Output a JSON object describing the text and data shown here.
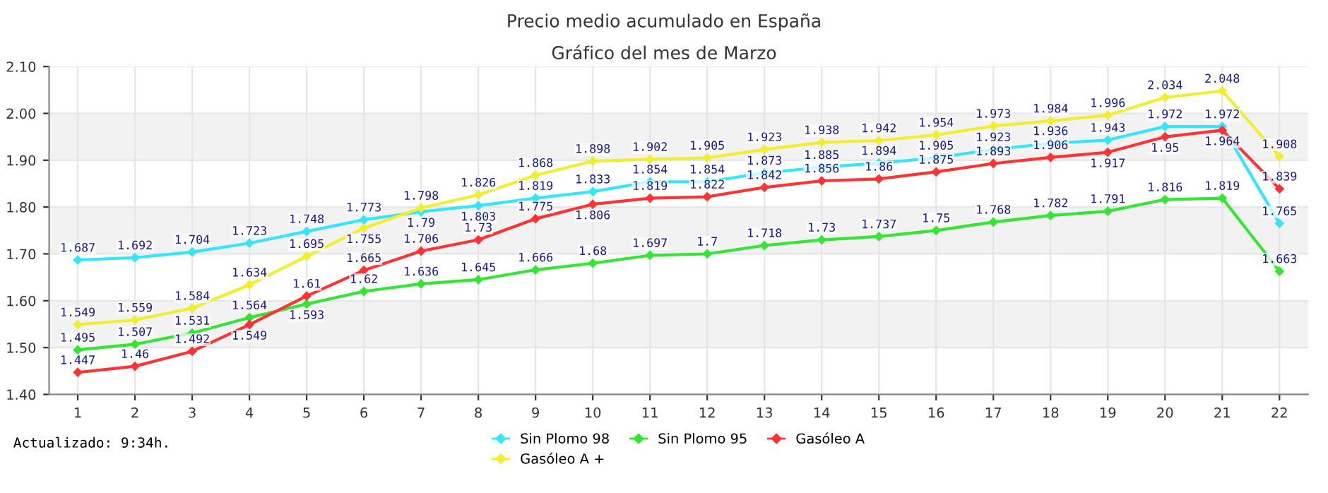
{
  "chart_data": {
    "type": "line",
    "title": "Precio medio acumulado en España",
    "subtitle": "Gráfico del mes de Marzo",
    "categories": [
      "1",
      "2",
      "3",
      "4",
      "5",
      "6",
      "7",
      "8",
      "9",
      "10",
      "11",
      "12",
      "13",
      "14",
      "15",
      "16",
      "17",
      "18",
      "19",
      "20",
      "21",
      "22"
    ],
    "series": [
      {
        "name": "Sin Plomo 98",
        "color": "#33e6ff",
        "values": [
          1.687,
          1.692,
          1.704,
          1.723,
          1.748,
          1.773,
          1.79,
          1.803,
          1.819,
          1.833,
          1.854,
          1.854,
          1.873,
          1.885,
          1.894,
          1.905,
          1.923,
          1.936,
          1.943,
          1.972,
          1.972,
          1.765
        ]
      },
      {
        "name": "Gasóleo A +",
        "color": "#f2ee2e",
        "values": [
          1.549,
          1.559,
          1.584,
          1.634,
          1.695,
          1.755,
          1.798,
          1.826,
          1.868,
          1.898,
          1.902,
          1.905,
          1.923,
          1.938,
          1.942,
          1.954,
          1.973,
          1.984,
          1.996,
          2.034,
          2.048,
          1.908
        ]
      },
      {
        "name": "Sin Plomo 95",
        "color": "#33e633",
        "values": [
          1.495,
          1.507,
          1.531,
          1.564,
          1.593,
          1.62,
          1.636,
          1.645,
          1.666,
          1.68,
          1.697,
          1.7,
          1.718,
          1.73,
          1.737,
          1.75,
          1.768,
          1.782,
          1.791,
          1.816,
          1.819,
          1.663
        ]
      },
      {
        "name": "Gasóleo A",
        "color": "#ff3333",
        "values": [
          1.447,
          1.46,
          1.492,
          1.549,
          1.61,
          1.665,
          1.706,
          1.73,
          1.775,
          1.806,
          1.819,
          1.822,
          1.842,
          1.856,
          1.86,
          1.875,
          1.893,
          1.906,
          1.917,
          1.95,
          1.964,
          1.839
        ]
      }
    ],
    "ylim": [
      1.4,
      2.1
    ],
    "yticks": [
      {
        "value": 1.4,
        "label": "1.40"
      },
      {
        "value": 1.5,
        "label": "1.50"
      },
      {
        "value": 1.6,
        "label": "1.60"
      },
      {
        "value": 1.7,
        "label": "1.70"
      },
      {
        "value": 1.8,
        "label": "1.80"
      },
      {
        "value": 1.9,
        "label": "1.90"
      },
      {
        "value": 2.0,
        "label": "2.00"
      },
      {
        "value": 2.1,
        "label": "2.10"
      }
    ],
    "grid": true,
    "legend": "bottom",
    "marker": "diamond",
    "line_style": "solid",
    "data_labels": true,
    "annotations": [
      "Actualizado: 9:34h."
    ]
  }
}
